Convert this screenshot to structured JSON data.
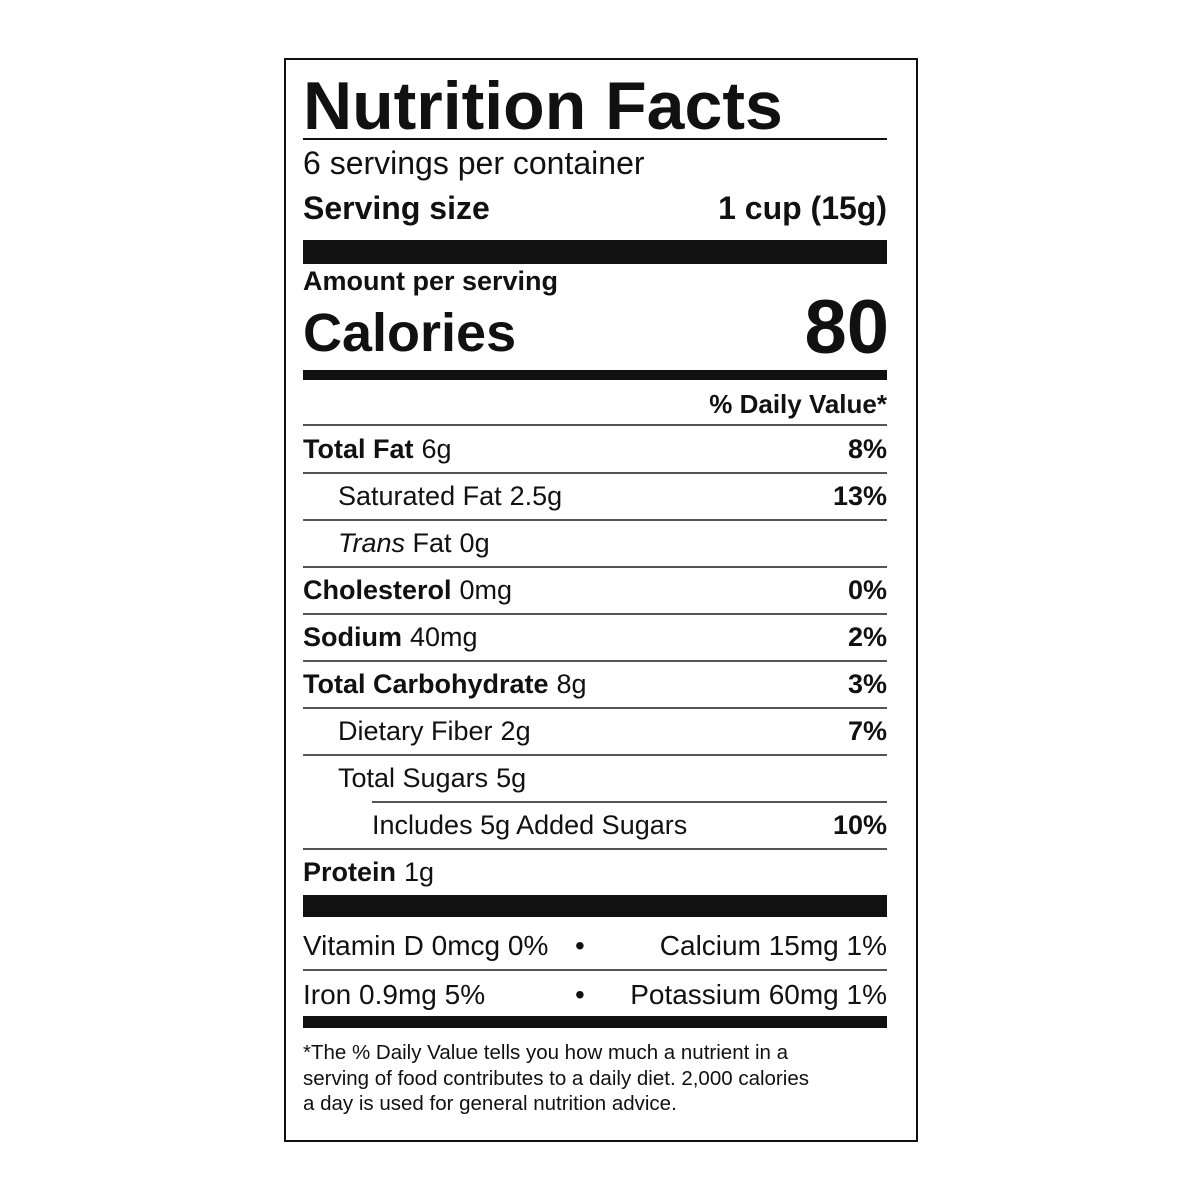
{
  "header": {
    "title": "Nutrition Facts",
    "servings": "6 servings per container",
    "serving_size_label": "Serving size",
    "serving_size": "1 cup (15g)"
  },
  "calories": {
    "amount_per_serving": "Amount per serving",
    "label": "Calories",
    "value": 80
  },
  "daily_value_header": "% Daily Value*",
  "nutrients": [
    {
      "name": "Total Fat",
      "amount": "6g",
      "dv": "8%"
    },
    {
      "name": "Saturated Fat",
      "amount": "2.5g",
      "dv": "13%"
    },
    {
      "name_italic": "Trans",
      "name": "Fat",
      "amount": "0g"
    },
    {
      "name": "Cholesterol",
      "amount": "0mg",
      "dv": "0%"
    },
    {
      "name": "Sodium",
      "amount": "40mg",
      "dv": "2%"
    },
    {
      "name": "Total Carbohydrate",
      "amount": "8g",
      "dv": "3%"
    },
    {
      "name": "Dietary Fiber",
      "amount": "2g",
      "dv": "7%"
    },
    {
      "name": "Total Sugars",
      "amount": "5g"
    },
    {
      "name": "Includes 5g Added Sugars",
      "dv": "10%"
    },
    {
      "name": "Protein",
      "amount": "1g"
    }
  ],
  "vitamin_separator": "•",
  "vitamins": [
    {
      "left": "Vitamin D 0mcg 0%",
      "right": "Calcium 15mg 1%"
    },
    {
      "left": "Iron 0.9mg 5%",
      "right": "Potassium 60mg 1%"
    }
  ],
  "footnote": [
    "*The % Daily Value tells you how much a nutrient in a",
    "serving of food contributes to a daily diet. 2,000 calories",
    "a day is used for general nutrition advice."
  ]
}
